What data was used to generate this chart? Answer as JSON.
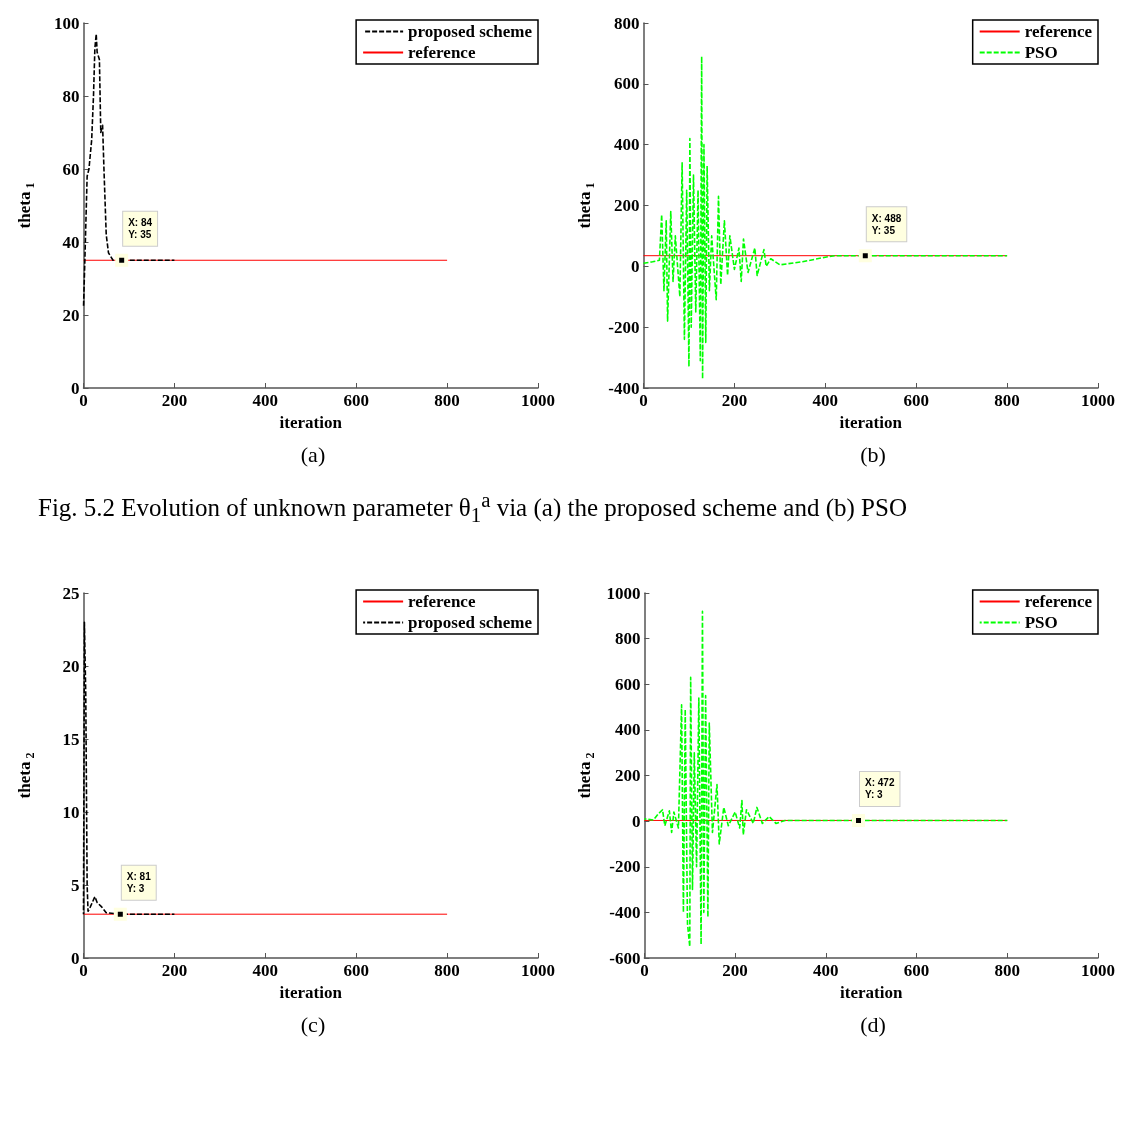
{
  "chart_data": [
    {
      "type": "line",
      "title": "(a)",
      "xlabel": "iteration",
      "ylabel": "theta$_{1}$",
      "xlim": [
        0,
        1000
      ],
      "xticks": [
        0,
        200,
        400,
        600,
        800,
        1000
      ],
      "ylim": [
        0,
        100
      ],
      "yticks": [
        0,
        20,
        40,
        60,
        80,
        100
      ],
      "legend": "top right",
      "marker": "none",
      "series": [
        {
          "name": "proposed scheme",
          "color": "#000000",
          "line_style": "dashed",
          "x": [
            0,
            3,
            8,
            12,
            18,
            22,
            25,
            28,
            30,
            35,
            38,
            42,
            45,
            50,
            55,
            65,
            84,
            200
          ],
          "values": [
            22,
            35,
            58,
            60,
            68,
            80,
            93,
            97,
            92,
            90,
            70,
            72,
            60,
            42,
            37,
            35,
            35,
            35
          ]
        },
        {
          "name": "reference",
          "color": "#ff0000",
          "line_style": "solid",
          "x": [
            0,
            800
          ],
          "values": [
            35,
            35
          ]
        }
      ],
      "annotations": [
        {
          "text": "X: 84\nY: 35",
          "x": 84,
          "y": 35
        },
        "Fig. 5.2 Evolution of unknown parameter θ$_{1}$$^{a}$ via (a) the proposed scheme and (b) PSO"
      ]
    },
    {
      "type": "line",
      "title": "(b)",
      "xlabel": "iteration",
      "ylabel": "theta$_{1}$",
      "xlim": [
        0,
        1000
      ],
      "xticks": [
        0,
        200,
        400,
        600,
        800,
        1000
      ],
      "ylim": [
        -400,
        800
      ],
      "yticks": [
        -400,
        -200,
        0,
        200,
        400,
        600,
        800
      ],
      "legend": "top right",
      "marker": "none",
      "series": [
        {
          "name": "reference",
          "color": "#ff0000",
          "line_style": "solid",
          "x": [
            0,
            800
          ],
          "values": [
            35,
            35
          ]
        },
        {
          "name": "PSO",
          "color": "#00ff00",
          "line_style": "dashed",
          "x": [
            0,
            20,
            35,
            40,
            45,
            50,
            53,
            60,
            65,
            70,
            80,
            85,
            90,
            95,
            100,
            102,
            105,
            110,
            115,
            120,
            125,
            128,
            130,
            133,
            137,
            140,
            145,
            150,
            160,
            165,
            170,
            178,
            185,
            190,
            200,
            210,
            215,
            220,
            230,
            245,
            250,
            265,
            270,
            280,
            300,
            350,
            400,
            420,
            800
          ],
          "values": [
            10,
            15,
            20,
            170,
            -80,
            150,
            -180,
            180,
            -50,
            100,
            -100,
            340,
            -240,
            250,
            -330,
            420,
            -200,
            300,
            -150,
            250,
            -310,
            690,
            -370,
            400,
            -250,
            330,
            -80,
            100,
            -110,
            230,
            -60,
            150,
            -30,
            100,
            -10,
            60,
            -50,
            90,
            -20,
            60,
            -30,
            55,
            0,
            25,
            5,
            15,
            30,
            35,
            35
          ]
        }
      ],
      "annotations": [
        {
          "text": "X: 488\nY: 35",
          "x": 488,
          "y": 35
        }
      ]
    },
    {
      "type": "line",
      "title": "(c)",
      "xlabel": "iteration",
      "ylabel": "theta$_{2}$",
      "xlim": [
        0,
        1000
      ],
      "xticks": [
        0,
        200,
        400,
        600,
        800,
        1000
      ],
      "ylim": [
        0,
        25
      ],
      "yticks": [
        0,
        5,
        10,
        15,
        20,
        25
      ],
      "legend": "top right",
      "marker": "none",
      "series": [
        {
          "name": "reference",
          "color": "#ff0000",
          "line_style": "solid",
          "x": [
            0,
            800
          ],
          "values": [
            3,
            3
          ]
        },
        {
          "name": "proposed scheme",
          "color": "#000000",
          "line_style": "dashed",
          "x": [
            0,
            2,
            5,
            8,
            10,
            15,
            25,
            30,
            40,
            50,
            81,
            200
          ],
          "values": [
            3,
            23,
            18,
            5,
            3.2,
            3.5,
            4.2,
            3.8,
            3.5,
            3.1,
            3,
            3
          ]
        }
      ],
      "annotations": [
        {
          "text": "X: 81\nY: 3",
          "x": 81,
          "y": 3
        }
      ]
    },
    {
      "type": "line",
      "title": "(d)",
      "xlabel": "iteration",
      "ylabel": "theta$_{2}$",
      "xlim": [
        0,
        1000
      ],
      "xticks": [
        0,
        200,
        400,
        600,
        800,
        1000
      ],
      "ylim": [
        -600,
        1000
      ],
      "yticks": [
        -600,
        -400,
        -200,
        0,
        200,
        400,
        600,
        800,
        1000
      ],
      "legend": "top right",
      "marker": "none",
      "series": [
        {
          "name": "reference",
          "color": "#ff0000",
          "line_style": "solid",
          "x": [
            0,
            800
          ],
          "values": [
            3,
            3
          ]
        },
        {
          "name": "PSO",
          "color": "#00ff00",
          "line_style": "dashed",
          "x": [
            0,
            20,
            30,
            40,
            45,
            55,
            60,
            65,
            75,
            82,
            86,
            90,
            95,
            100,
            102,
            106,
            110,
            115,
            120,
            125,
            128,
            131,
            135,
            140,
            143,
            150,
            160,
            165,
            175,
            185,
            200,
            210,
            215,
            218,
            225,
            240,
            248,
            260,
            275,
            290,
            310,
            800
          ],
          "values": [
            10,
            5,
            30,
            50,
            -20,
            45,
            -50,
            40,
            -30,
            510,
            -400,
            490,
            -450,
            -550,
            630,
            -300,
            300,
            -200,
            540,
            -540,
            920,
            -400,
            550,
            -420,
            430,
            -50,
            160,
            -100,
            60,
            -20,
            40,
            -30,
            90,
            -60,
            50,
            -10,
            60,
            -10,
            20,
            -10,
            3,
            3
          ]
        }
      ],
      "annotations": [
        {
          "text": "X: 472\nY: 3",
          "x": 472,
          "y": 3
        }
      ]
    }
  ]
}
